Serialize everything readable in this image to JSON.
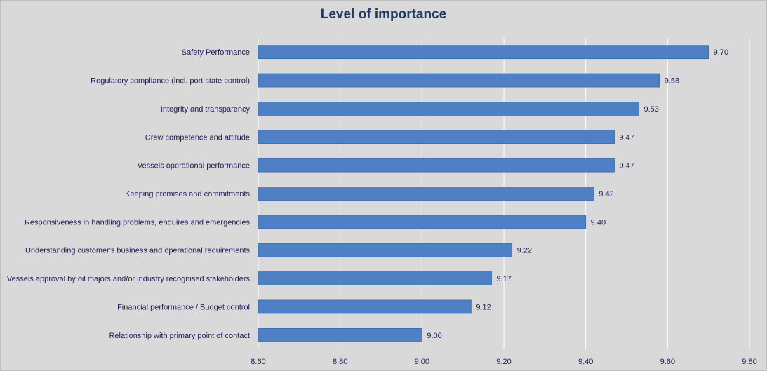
{
  "chart_data": {
    "type": "bar",
    "orientation": "horizontal",
    "title": "Level of importance",
    "categories": [
      "Safety Performance",
      "Regulatory compliance (incl. port state control)",
      "Integrity and transparency",
      "Crew competence and attitude",
      "Vessels operational performance",
      "Keeping promises and commitments",
      "Responsiveness in handling problems, enquires and emergencies",
      "Understanding customer's business and operational requirements",
      "Vessels approval by oil majors and/or industry recognised stakeholders",
      "Financial performance / Budget control",
      "Relationship with primary point of contact"
    ],
    "values": [
      9.7,
      9.58,
      9.53,
      9.47,
      9.47,
      9.42,
      9.4,
      9.22,
      9.17,
      9.12,
      9.0
    ],
    "value_labels": [
      "9.70",
      "9.58",
      "9.53",
      "9.47",
      "9.47",
      "9.42",
      "9.40",
      "9.22",
      "9.17",
      "9.12",
      "9.00"
    ],
    "xlim": [
      8.6,
      9.8
    ],
    "xticks": [
      "8.60",
      "8.80",
      "9.00",
      "9.20",
      "9.40",
      "9.60",
      "9.80"
    ],
    "xlabel": "",
    "ylabel": "",
    "grid": "vertical",
    "legend": "none",
    "colors": {
      "bar": "#4f7fc4",
      "bar_edge": "#3b6aae",
      "background": "#d9d9d9",
      "gridline": "#ffffff",
      "title": "#1f3864",
      "text": "#1f1f5c"
    }
  }
}
